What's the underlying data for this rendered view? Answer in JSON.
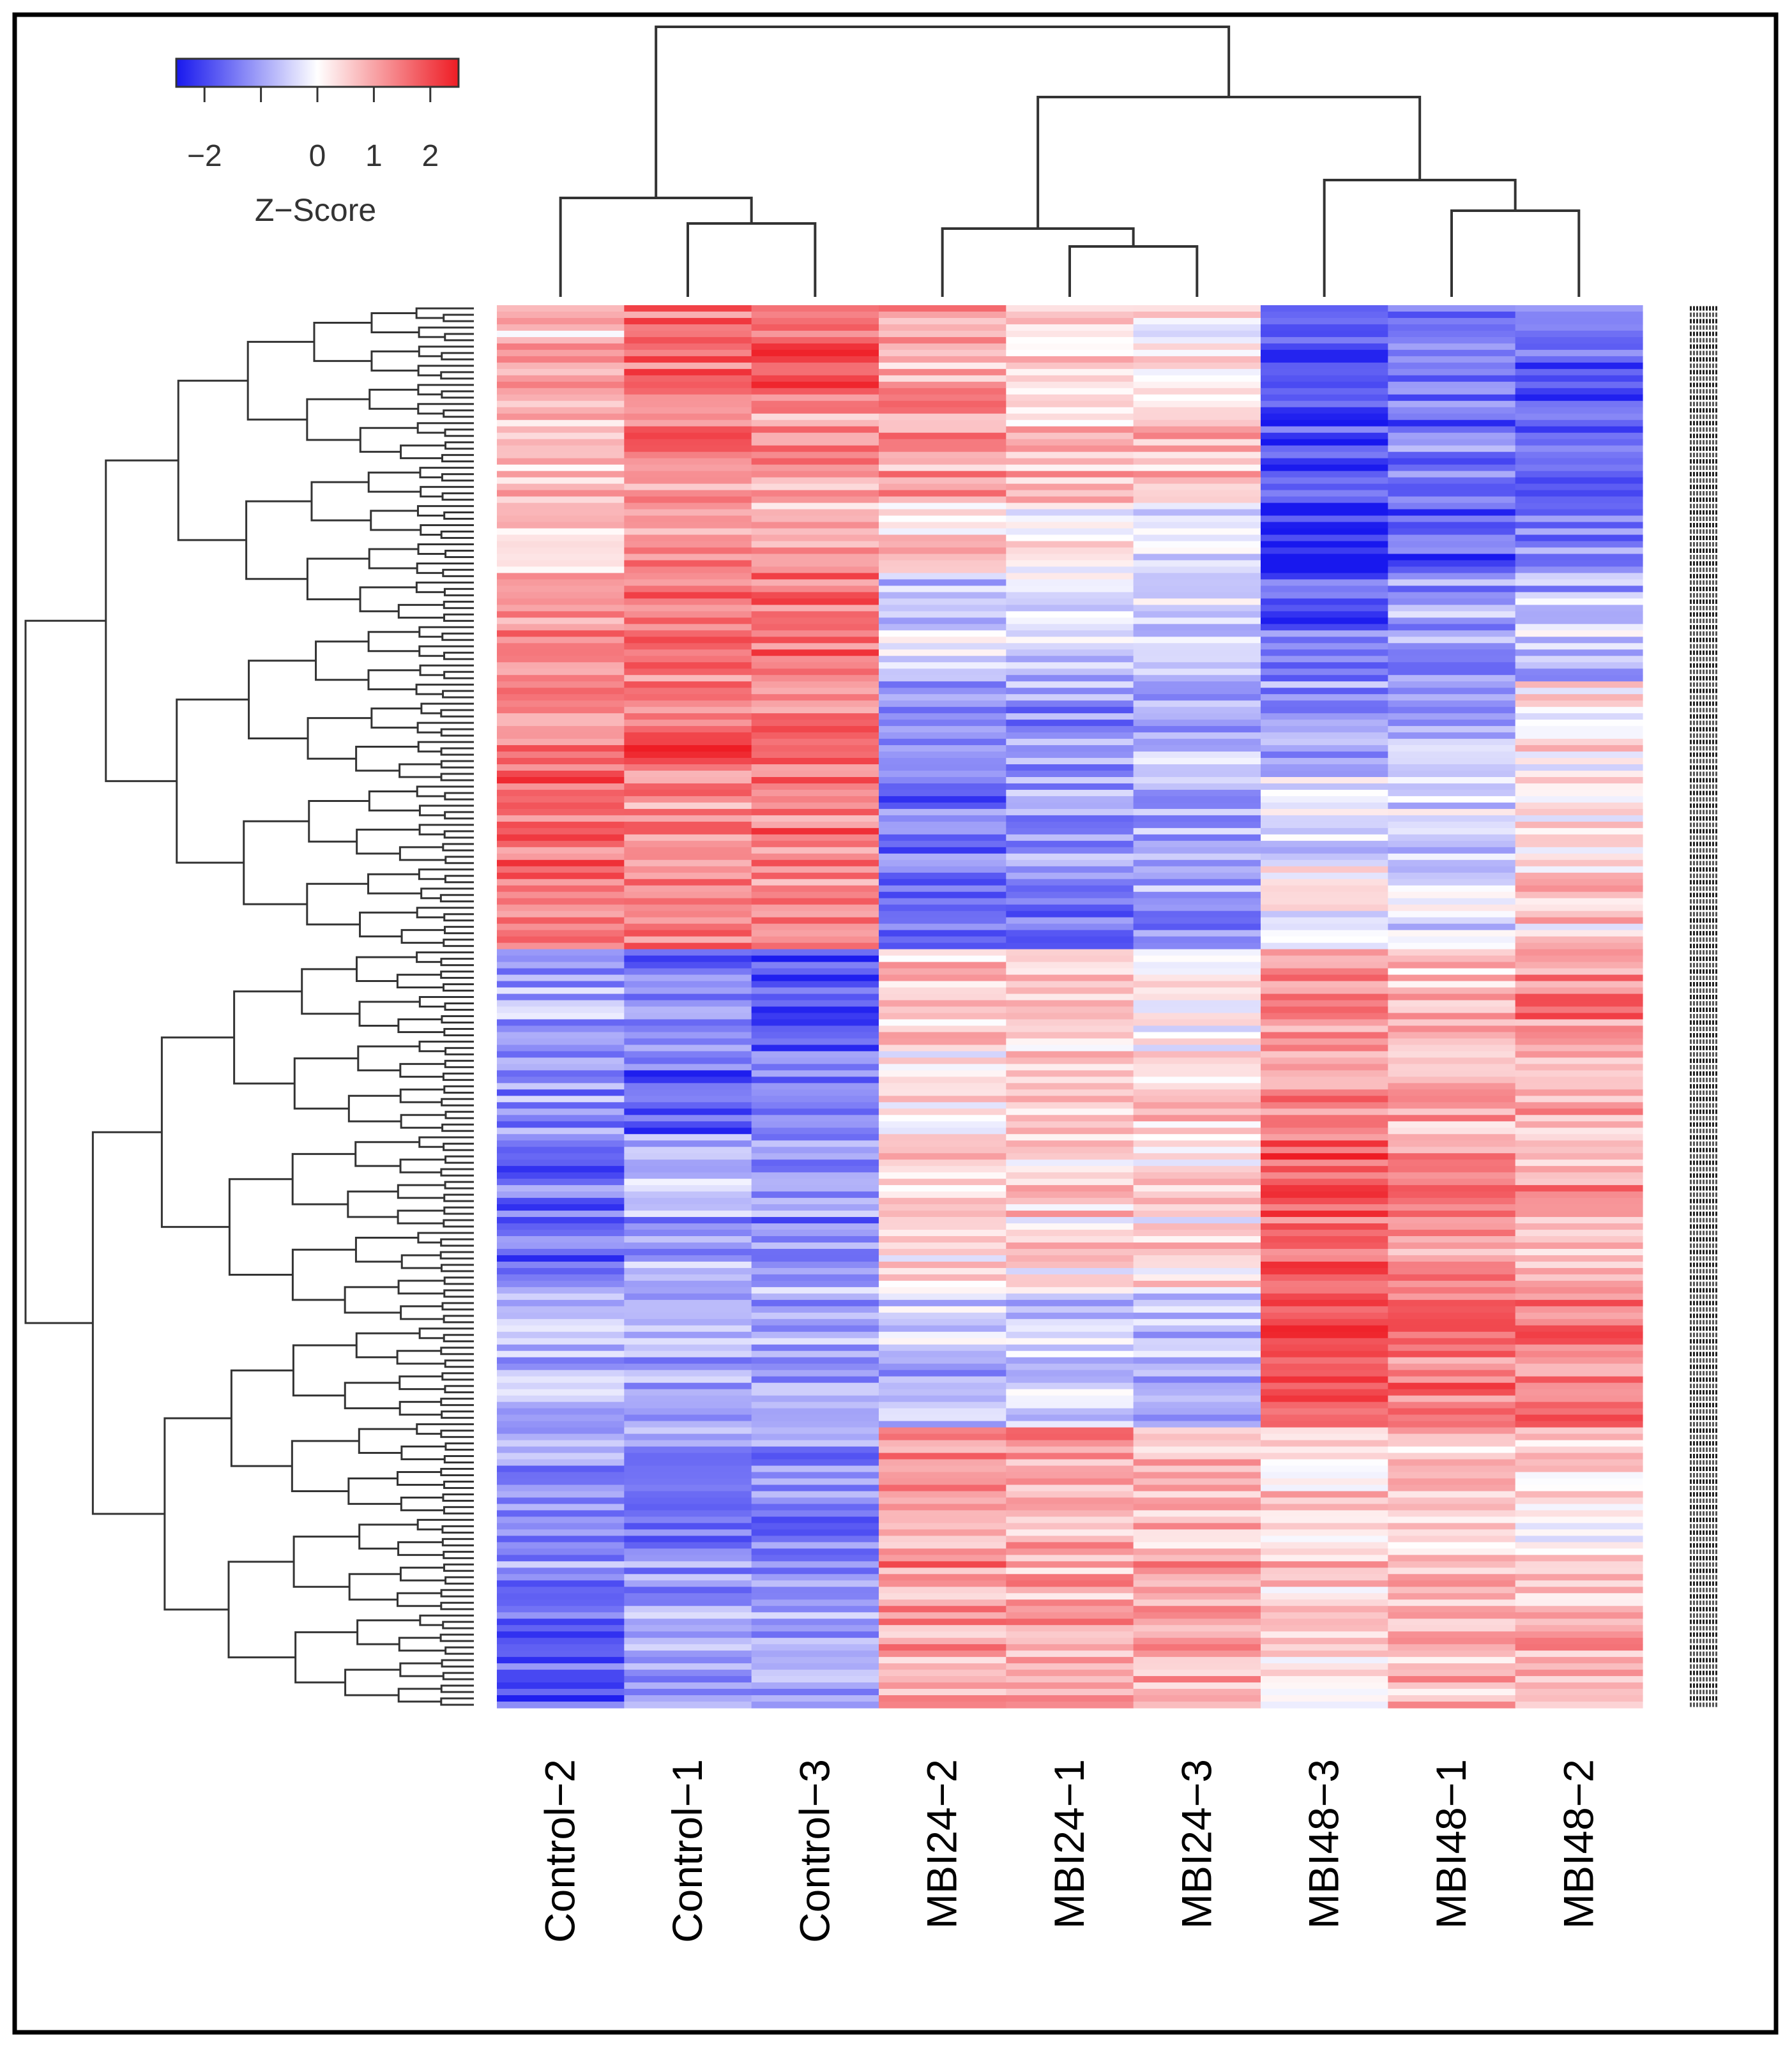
{
  "chart_data": {
    "type": "heatmap",
    "title": "",
    "xlabel": "",
    "ylabel": "",
    "columns": [
      "Control−2",
      "Control−1",
      "Control−3",
      "MBI24−2",
      "MBI24−1",
      "MBI24−3",
      "MBI48−3",
      "MBI48−1",
      "MBI48−2"
    ],
    "color_key": {
      "title": "Z−Score",
      "range": [
        -2.5,
        2.5
      ],
      "tick_values": [
        -2,
        0,
        1,
        2
      ],
      "tick_labels": [
        "−2",
        "0",
        "1",
        "2"
      ],
      "low_color": "#1818ee",
      "mid_color": "#ffffff",
      "high_color": "#ee1c24"
    },
    "row_dendrogram": true,
    "column_dendrogram": true,
    "row_count_approx": 220,
    "row_side_labels": "unreadable gene identifiers",
    "blocks": [
      {
        "name": "upper cluster",
        "row_fraction": [
          0.0,
          0.065
        ],
        "means": [
          0.7,
          1.6,
          1.7,
          1.0,
          0.4,
          0.3,
          -2.0,
          -1.3,
          -1.7
        ]
      },
      {
        "name": "upper cluster",
        "row_fraction": [
          0.065,
          0.14
        ],
        "means": [
          0.7,
          1.3,
          1.1,
          1.1,
          0.7,
          0.7,
          -1.9,
          -1.5,
          -1.8
        ]
      },
      {
        "name": "upper cluster",
        "row_fraction": [
          0.14,
          0.19
        ],
        "means": [
          0.4,
          1.3,
          0.9,
          0.4,
          0.2,
          0.0,
          -2.4,
          -1.8,
          -1.4
        ]
      },
      {
        "name": "upper cluster",
        "row_fraction": [
          0.19,
          0.27
        ],
        "means": [
          1.4,
          1.6,
          1.5,
          -0.6,
          -0.5,
          -0.5,
          -1.7,
          -1.0,
          -0.7
        ]
      },
      {
        "name": "upper cluster",
        "row_fraction": [
          0.27,
          0.33
        ],
        "means": [
          1.4,
          1.8,
          1.5,
          -1.1,
          -1.0,
          -0.9,
          -1.0,
          -0.6,
          0.2
        ]
      },
      {
        "name": "upper cluster",
        "row_fraction": [
          0.33,
          0.4
        ],
        "means": [
          1.6,
          1.3,
          1.5,
          -1.4,
          -1.2,
          -1.0,
          -0.4,
          -0.3,
          0.4
        ]
      },
      {
        "name": "upper cluster",
        "row_fraction": [
          0.4,
          0.46
        ],
        "means": [
          1.5,
          1.3,
          1.2,
          -1.5,
          -1.4,
          -1.2,
          0.1,
          -0.4,
          0.5
        ]
      },
      {
        "name": "lower cluster",
        "row_fraction": [
          0.46,
          0.53
        ],
        "means": [
          -1.0,
          -1.5,
          -1.9,
          0.6,
          0.5,
          0.1,
          1.2,
          0.8,
          1.3
        ]
      },
      {
        "name": "lower cluster",
        "row_fraction": [
          0.53,
          0.59
        ],
        "means": [
          -1.0,
          -1.6,
          -1.2,
          0.3,
          0.6,
          0.6,
          1.4,
          1.0,
          1.0
        ]
      },
      {
        "name": "lower cluster",
        "row_fraction": [
          0.59,
          0.7
        ],
        "means": [
          -1.6,
          -0.9,
          -1.2,
          0.3,
          0.4,
          0.3,
          1.8,
          1.3,
          1.0
        ]
      },
      {
        "name": "lower cluster",
        "row_fraction": [
          0.7,
          0.8
        ],
        "means": [
          -0.7,
          -1.0,
          -1.0,
          -0.7,
          -0.5,
          -0.8,
          1.7,
          1.5,
          1.5
        ]
      },
      {
        "name": "lower cluster",
        "row_fraction": [
          0.8,
          0.9
        ],
        "means": [
          -1.1,
          -1.2,
          -1.3,
          1.2,
          1.1,
          0.9,
          0.6,
          0.6,
          0.4
        ]
      },
      {
        "name": "lower cluster",
        "row_fraction": [
          0.9,
          1.0
        ],
        "means": [
          -1.6,
          -1.0,
          -1.1,
          1.0,
          1.0,
          0.9,
          0.5,
          0.9,
          0.8
        ]
      }
    ]
  }
}
